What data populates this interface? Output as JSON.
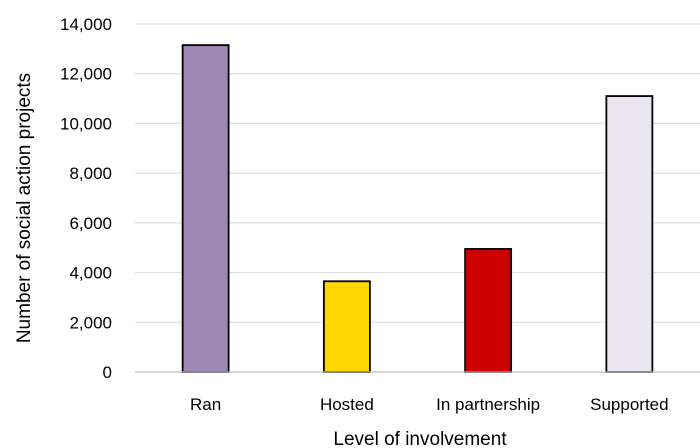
{
  "chart_data": {
    "type": "bar",
    "title": "",
    "xlabel": "Level of involvement",
    "ylabel": "Number of social action projects",
    "categories": [
      "Ran",
      "Hosted",
      "In partnership",
      "Supported"
    ],
    "values": [
      13150,
      3650,
      4950,
      11100
    ],
    "bar_colors": [
      "#9e86b5",
      "#ffd700",
      "#cc0000",
      "#eae6f0"
    ],
    "ylim": [
      0,
      14000
    ],
    "yticks": [
      0,
      2000,
      4000,
      6000,
      8000,
      10000,
      12000,
      14000
    ],
    "ytick_labels": [
      "0",
      "2,000",
      "4,000",
      "6,000",
      "8,000",
      "10,000",
      "12,000",
      "14,000"
    ],
    "grid": true,
    "legend": "none"
  }
}
